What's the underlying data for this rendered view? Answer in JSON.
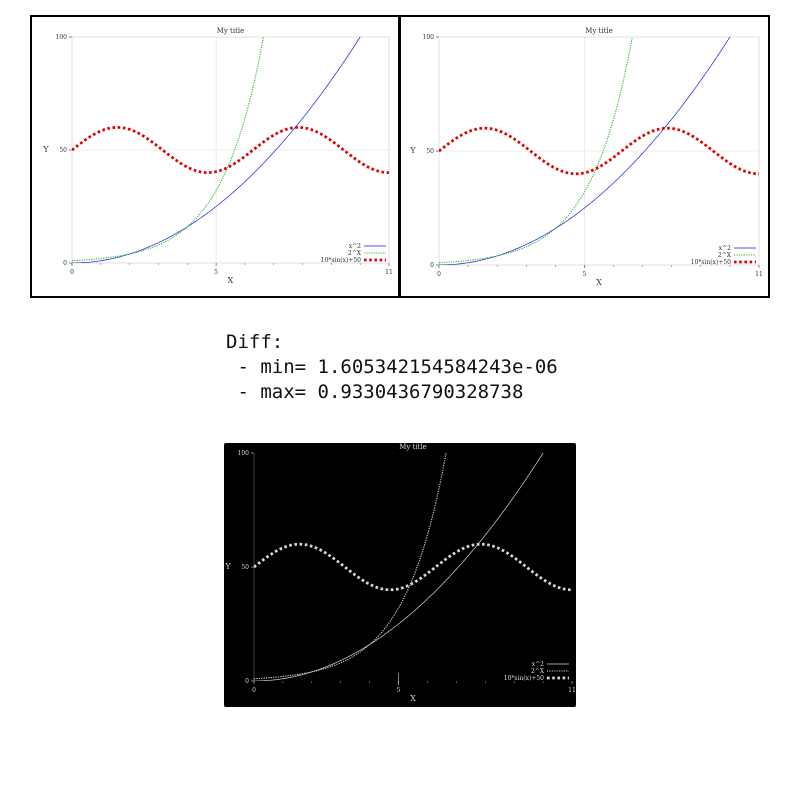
{
  "colors": {
    "sq": "#1a1aee",
    "exp": "#2db82d",
    "sin": "#e00000",
    "frame": "#000000",
    "diff_bg": "#000000",
    "diff_fg": "#d8d8d8"
  },
  "diff": {
    "heading": "Diff:",
    "min_line": " - min= 1.605342154584243e-06",
    "max_line": " - max= 0.9330436790328738"
  },
  "chart_data": [
    {
      "id": "left",
      "type": "line",
      "title": "My title",
      "xlabel": "X",
      "ylabel": "Y",
      "xlim": [
        0,
        11
      ],
      "ylim": [
        0,
        100
      ],
      "xticks": [
        "0",
        "5",
        "11"
      ],
      "yticks": [
        "0",
        "50",
        "100"
      ],
      "grid": true,
      "legend_position": "bottom-right",
      "series": [
        {
          "name": "x^2",
          "style": "solid",
          "color_key": "sq"
        },
        {
          "name": "2^X",
          "style": "dotted",
          "color_key": "exp"
        },
        {
          "name": "10*sin(x)+50",
          "style": "thick-dotted",
          "color_key": "sin"
        }
      ]
    },
    {
      "id": "right",
      "type": "line",
      "title": "My title",
      "xlabel": "X",
      "ylabel": "Y",
      "xlim": [
        0,
        11
      ],
      "ylim": [
        0,
        100
      ],
      "xticks": [
        "0",
        "5",
        "11"
      ],
      "yticks": [
        "0",
        "50",
        "100"
      ],
      "grid": true,
      "legend_position": "bottom-right",
      "series": [
        {
          "name": "x^2",
          "style": "solid",
          "color_key": "sq"
        },
        {
          "name": "2^X",
          "style": "dotted",
          "color_key": "exp"
        },
        {
          "name": "10*sin(x)+50",
          "style": "thick-dotted",
          "color_key": "sin"
        }
      ]
    },
    {
      "id": "diff",
      "type": "line",
      "title": "My title",
      "xlabel": "X",
      "ylabel": "Y",
      "xlim": [
        0,
        11
      ],
      "ylim": [
        0,
        100
      ],
      "xticks": [
        "0",
        "5",
        "11"
      ],
      "yticks": [
        "0",
        "50",
        "100"
      ],
      "grid": false,
      "legend_position": "bottom-right",
      "series": [
        {
          "name": "x^2",
          "style": "solid",
          "color_key": "diff_fg"
        },
        {
          "name": "2^X",
          "style": "dotted",
          "color_key": "diff_fg"
        },
        {
          "name": "10*sin(x)+50",
          "style": "thick-dotted",
          "color_key": "diff_fg"
        }
      ]
    }
  ]
}
